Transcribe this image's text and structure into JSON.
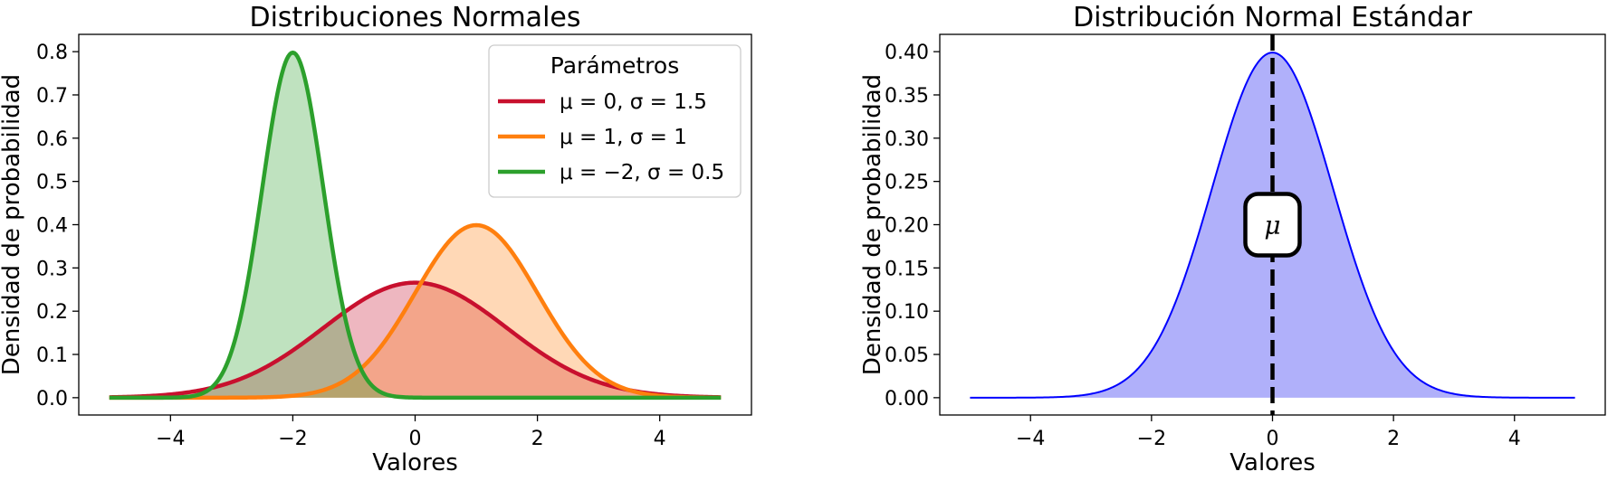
{
  "chart_data": [
    {
      "type": "area",
      "title": "Distribuciones Normales",
      "xlabel": "Valores",
      "ylabel": "Densidad de probabilidad",
      "xlim": [
        -5.5,
        5.5
      ],
      "ylim": [
        -0.04,
        0.84
      ],
      "xticks": [
        -4,
        -2,
        0,
        2,
        4
      ],
      "xtick_labels": [
        "−4",
        "−2",
        "0",
        "2",
        "4"
      ],
      "yticks": [
        0.0,
        0.1,
        0.2,
        0.3,
        0.4,
        0.5,
        0.6,
        0.7,
        0.8
      ],
      "ytick_labels": [
        "0.0",
        "0.1",
        "0.2",
        "0.3",
        "0.4",
        "0.5",
        "0.6",
        "0.7",
        "0.8"
      ],
      "x_range": [
        -5,
        5
      ],
      "grid": false,
      "legend": {
        "title": "Parámetros",
        "placement": "upper-right",
        "entries": [
          "μ = 0, σ = 1.5",
          "μ = 1, σ = 1",
          "μ = −2, σ = 0.5"
        ]
      },
      "series": [
        {
          "name": "μ = 0, σ = 1.5",
          "mu": 0,
          "sigma": 1.5,
          "color": "#c8102e",
          "fill_alpha": 0.3
        },
        {
          "name": "μ = 1, σ = 1",
          "mu": 1,
          "sigma": 1,
          "color": "#ff7f0e",
          "fill_alpha": 0.3
        },
        {
          "name": "μ = −2, σ = 0.5",
          "mu": -2,
          "sigma": 0.5,
          "color": "#2ca02c",
          "fill_alpha": 0.3
        }
      ]
    },
    {
      "type": "area",
      "title": "Distribución Normal Estándar",
      "xlabel": "Valores",
      "ylabel": "Densidad de probabilidad",
      "xlim": [
        -5.5,
        5.5
      ],
      "ylim": [
        -0.02,
        0.42
      ],
      "xticks": [
        -4,
        -2,
        0,
        2,
        4
      ],
      "xtick_labels": [
        "−4",
        "−2",
        "0",
        "2",
        "4"
      ],
      "yticks": [
        0.0,
        0.05,
        0.1,
        0.15,
        0.2,
        0.25,
        0.3,
        0.35,
        0.4
      ],
      "ytick_labels": [
        "0.00",
        "0.05",
        "0.10",
        "0.15",
        "0.20",
        "0.25",
        "0.30",
        "0.35",
        "0.40"
      ],
      "x_range": [
        -5,
        5
      ],
      "grid": false,
      "series": [
        {
          "mu": 0,
          "sigma": 1,
          "color": "#0000ff",
          "fill_color": "#b0b0fa"
        }
      ],
      "vline": {
        "x": 0,
        "style": "dashed",
        "color": "#000000"
      },
      "annotation": {
        "text": "μ",
        "x": 0,
        "y": 0.2,
        "box": "rounded"
      }
    }
  ]
}
